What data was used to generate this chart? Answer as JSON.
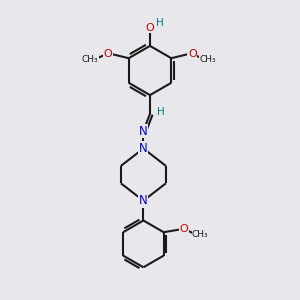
{
  "background_color": "#e8e8ec",
  "bond_color": "#1a1a1a",
  "bond_width": 1.5,
  "N_color": "#0000dd",
  "O_color": "#cc0000",
  "H_color": "#008080",
  "fig_width": 3.0,
  "fig_height": 3.0,
  "xlim": [
    0,
    10
  ],
  "ylim": [
    0,
    10
  ]
}
